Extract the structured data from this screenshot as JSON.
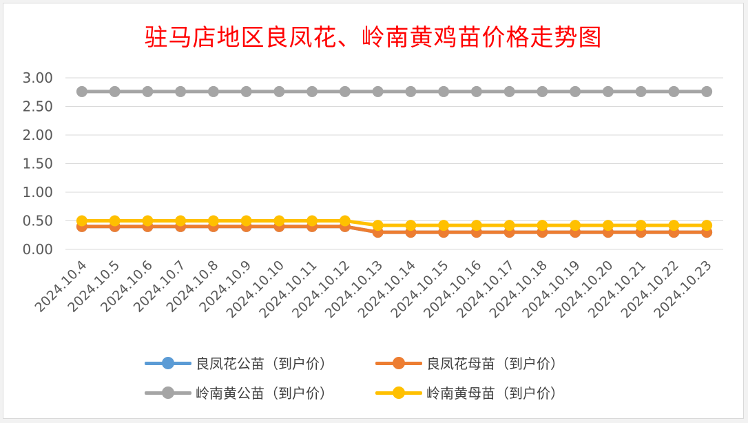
{
  "chart_data": {
    "type": "line",
    "title": "驻马店地区良凤花、岭南黄鸡苗价格走势图",
    "categories": [
      "2024.10.4",
      "2024.10.5",
      "2024.10.6",
      "2024.10.7",
      "2024.10.8",
      "2024.10.9",
      "2024.10.10",
      "2024.10.11",
      "2024.10.12",
      "2024.10.13",
      "2024.10.14",
      "2024.10.15",
      "2024.10.16",
      "2024.10.17",
      "2024.10.18",
      "2024.10.19",
      "2024.10.20",
      "2024.10.21",
      "2024.10.22",
      "2024.10.23"
    ],
    "ylim": [
      0,
      3
    ],
    "yticks": [
      "0.00",
      "0.50",
      "1.00",
      "1.50",
      "2.00",
      "2.50",
      "3.00"
    ],
    "grid": true,
    "legend_position": "bottom",
    "series": [
      {
        "name": "良凤花公苗（到户价）",
        "color": "#5b9bd5",
        "values": [
          0.4,
          0.4,
          0.4,
          0.4,
          0.4,
          0.4,
          0.4,
          0.4,
          0.4,
          0.3,
          0.3,
          0.3,
          0.3,
          0.3,
          0.3,
          0.3,
          0.3,
          0.3,
          0.3,
          0.3
        ]
      },
      {
        "name": "良凤花母苗（到户价）",
        "color": "#ed7d31",
        "values": [
          0.4,
          0.4,
          0.4,
          0.4,
          0.4,
          0.4,
          0.4,
          0.4,
          0.4,
          0.3,
          0.3,
          0.3,
          0.3,
          0.3,
          0.3,
          0.3,
          0.3,
          0.3,
          0.3,
          0.3
        ]
      },
      {
        "name": "岭南黄公苗（到户价）",
        "color": "#a5a5a5",
        "values": [
          2.76,
          2.76,
          2.76,
          2.76,
          2.76,
          2.76,
          2.76,
          2.76,
          2.76,
          2.76,
          2.76,
          2.76,
          2.76,
          2.76,
          2.76,
          2.76,
          2.76,
          2.76,
          2.76,
          2.76
        ]
      },
      {
        "name": "岭南黄母苗（到户价）",
        "color": "#ffc000",
        "values": [
          0.5,
          0.5,
          0.5,
          0.5,
          0.5,
          0.5,
          0.5,
          0.5,
          0.5,
          0.42,
          0.42,
          0.42,
          0.42,
          0.42,
          0.42,
          0.42,
          0.42,
          0.42,
          0.42,
          0.42
        ]
      }
    ]
  }
}
